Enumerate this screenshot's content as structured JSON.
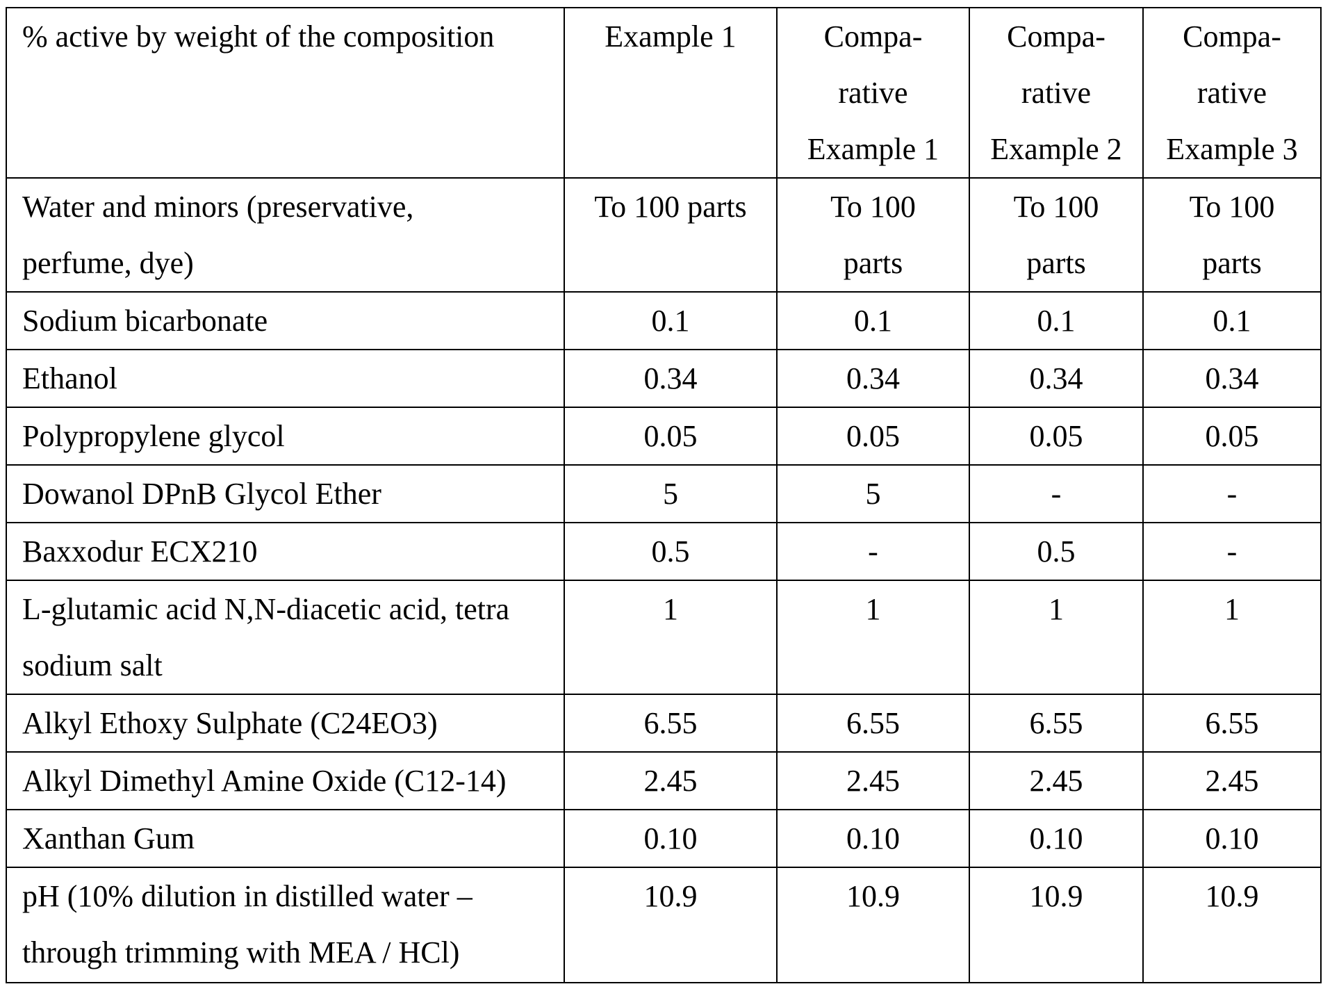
{
  "table": {
    "header": {
      "label": "% active by weight of the composition",
      "columns": [
        {
          "lines": [
            "Example 1"
          ]
        },
        {
          "lines": [
            "Compa-",
            "rative",
            "Example 1"
          ]
        },
        {
          "lines": [
            "Compa-",
            "rative",
            "Example 2"
          ]
        },
        {
          "lines": [
            "Compa-",
            "rative",
            "Example 3"
          ]
        }
      ]
    },
    "rows": [
      {
        "label_lines": [
          "Water and minors (preservative,",
          "perfume, dye)"
        ],
        "values": [
          {
            "lines": [
              "To 100 parts"
            ]
          },
          {
            "lines": [
              "To 100",
              "parts"
            ]
          },
          {
            "lines": [
              "To 100",
              "parts"
            ]
          },
          {
            "lines": [
              "To 100",
              "parts"
            ]
          }
        ]
      },
      {
        "label_lines": [
          "Sodium bicarbonate"
        ],
        "values": [
          {
            "lines": [
              "0.1"
            ]
          },
          {
            "lines": [
              "0.1"
            ]
          },
          {
            "lines": [
              "0.1"
            ]
          },
          {
            "lines": [
              "0.1"
            ]
          }
        ]
      },
      {
        "label_lines": [
          "Ethanol"
        ],
        "values": [
          {
            "lines": [
              "0.34"
            ]
          },
          {
            "lines": [
              "0.34"
            ]
          },
          {
            "lines": [
              "0.34"
            ]
          },
          {
            "lines": [
              "0.34"
            ]
          }
        ]
      },
      {
        "label_lines": [
          "Polypropylene glycol"
        ],
        "values": [
          {
            "lines": [
              "0.05"
            ]
          },
          {
            "lines": [
              "0.05"
            ]
          },
          {
            "lines": [
              "0.05"
            ]
          },
          {
            "lines": [
              "0.05"
            ]
          }
        ]
      },
      {
        "label_lines": [
          "Dowanol DPnB Glycol Ether"
        ],
        "values": [
          {
            "lines": [
              "5"
            ]
          },
          {
            "lines": [
              "5"
            ]
          },
          {
            "lines": [
              "-"
            ]
          },
          {
            "lines": [
              "-"
            ]
          }
        ]
      },
      {
        "label_lines": [
          "Baxxodur ECX210"
        ],
        "values": [
          {
            "lines": [
              "0.5"
            ]
          },
          {
            "lines": [
              "-"
            ]
          },
          {
            "lines": [
              "0.5"
            ]
          },
          {
            "lines": [
              "-"
            ]
          }
        ]
      },
      {
        "label_lines": [
          "L-glutamic acid N,N-diacetic acid, tetra",
          "sodium salt"
        ],
        "values": [
          {
            "lines": [
              "1"
            ]
          },
          {
            "lines": [
              "1"
            ]
          },
          {
            "lines": [
              "1"
            ]
          },
          {
            "lines": [
              "1"
            ]
          }
        ]
      },
      {
        "label_lines": [
          "Alkyl Ethoxy Sulphate (C24EO3)"
        ],
        "values": [
          {
            "lines": [
              "6.55"
            ]
          },
          {
            "lines": [
              "6.55"
            ]
          },
          {
            "lines": [
              "6.55"
            ]
          },
          {
            "lines": [
              "6.55"
            ]
          }
        ]
      },
      {
        "label_lines": [
          "Alkyl Dimethyl Amine Oxide (C12-14)"
        ],
        "values": [
          {
            "lines": [
              "2.45"
            ]
          },
          {
            "lines": [
              "2.45"
            ]
          },
          {
            "lines": [
              "2.45"
            ]
          },
          {
            "lines": [
              "2.45"
            ]
          }
        ]
      },
      {
        "label_lines": [
          "Xanthan Gum"
        ],
        "values": [
          {
            "lines": [
              "0.10"
            ]
          },
          {
            "lines": [
              "0.10"
            ]
          },
          {
            "lines": [
              "0.10"
            ]
          },
          {
            "lines": [
              "0.10"
            ]
          }
        ]
      },
      {
        "label_lines": [
          "pH (10% dilution in distilled water –",
          "through trimming with MEA / HCl)"
        ],
        "values": [
          {
            "lines": [
              "10.9"
            ]
          },
          {
            "lines": [
              "10.9"
            ]
          },
          {
            "lines": [
              "10.9"
            ]
          },
          {
            "lines": [
              "10.9"
            ]
          }
        ]
      }
    ]
  }
}
